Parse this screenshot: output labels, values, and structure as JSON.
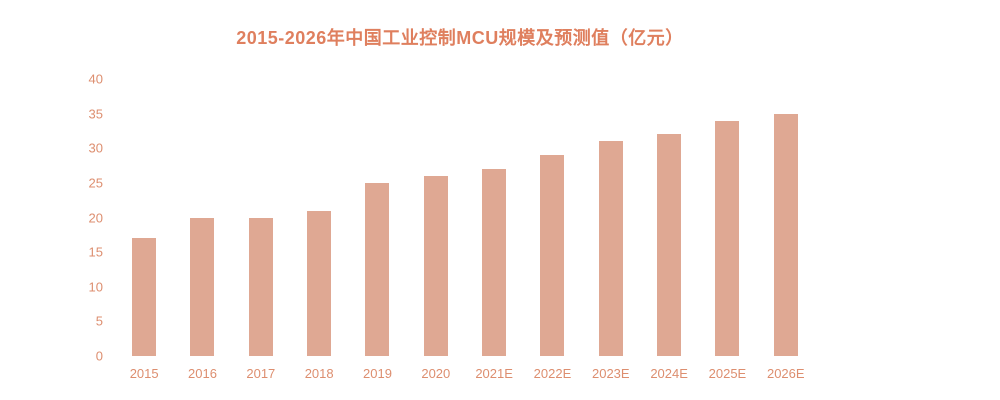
{
  "colors": {
    "bar": "#dfa893",
    "title": "#df7f5e",
    "axis_label": "#dd8e6f",
    "background": "#ffffff"
  },
  "chart_data": {
    "type": "bar",
    "title": "2015-2026年中国工业控制MCU规模及预测值（亿元）",
    "categories": [
      "2015",
      "2016",
      "2017",
      "2018",
      "2019",
      "2020",
      "2021E",
      "2022E",
      "2023E",
      "2024E",
      "2025E",
      "2026E"
    ],
    "values": [
      17,
      20,
      20,
      21,
      25,
      26,
      27,
      29,
      31,
      32,
      34,
      35
    ],
    "xlabel": "",
    "ylabel": "",
    "ylim": [
      0,
      40
    ],
    "yticks": [
      0,
      5,
      10,
      15,
      20,
      25,
      30,
      35,
      40
    ],
    "grid": false,
    "legend": "none",
    "unit": "亿元"
  }
}
